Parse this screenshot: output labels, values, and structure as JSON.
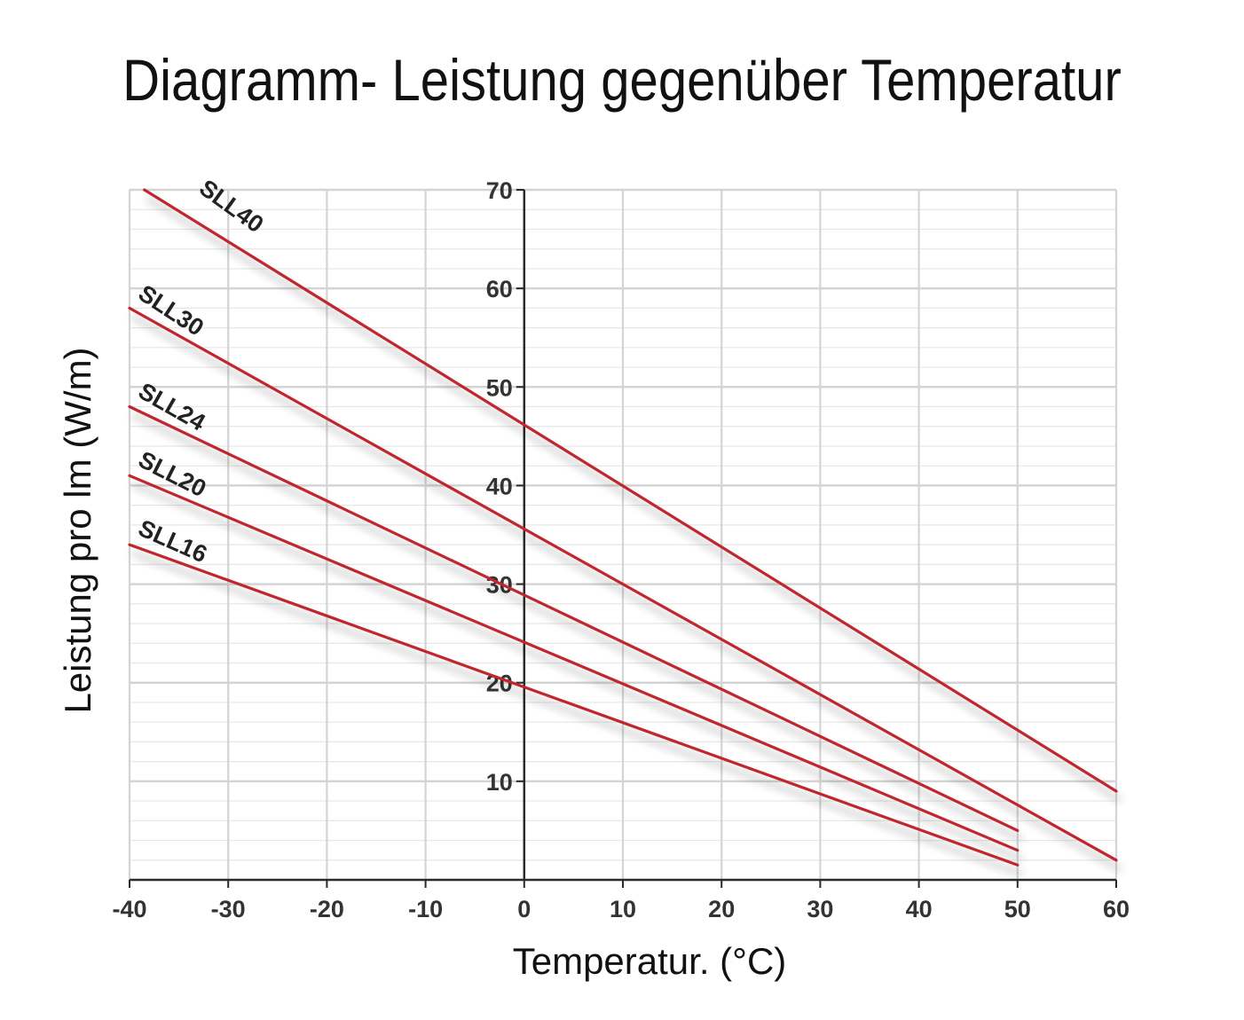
{
  "chart_data": {
    "type": "line",
    "title": "Diagramm- Leistung gegenüber Temperatur",
    "xlabel": "Temperatur. (°C)",
    "ylabel": "Leistung pro lm (W/m)",
    "xlim": [
      -40,
      60
    ],
    "ylim": [
      0,
      70
    ],
    "x_ticks": [
      "-40",
      "-30",
      "-20",
      "-10",
      "0",
      "10",
      "20",
      "30",
      "40",
      "50",
      "60"
    ],
    "y_ticks": [
      "10",
      "20",
      "30",
      "40",
      "50",
      "60",
      "70"
    ],
    "grid": true,
    "series": [
      {
        "name": "SLL40",
        "x": [
          -38.5,
          60
        ],
        "y": [
          70,
          9
        ]
      },
      {
        "name": "SLL30",
        "x": [
          -40,
          60
        ],
        "y": [
          58,
          2
        ]
      },
      {
        "name": "SLL24",
        "x": [
          -40,
          50
        ],
        "y": [
          48,
          5
        ]
      },
      {
        "name": "SLL20",
        "x": [
          -40,
          50
        ],
        "y": [
          41,
          3
        ]
      },
      {
        "name": "SLL16",
        "x": [
          -40,
          50
        ],
        "y": [
          34,
          1.5
        ]
      }
    ]
  },
  "colors": {
    "line": "#c0272d",
    "grid_major": "#d4d4d4",
    "grid_minor": "#e6e6e6",
    "axis": "#2a2a2a"
  }
}
